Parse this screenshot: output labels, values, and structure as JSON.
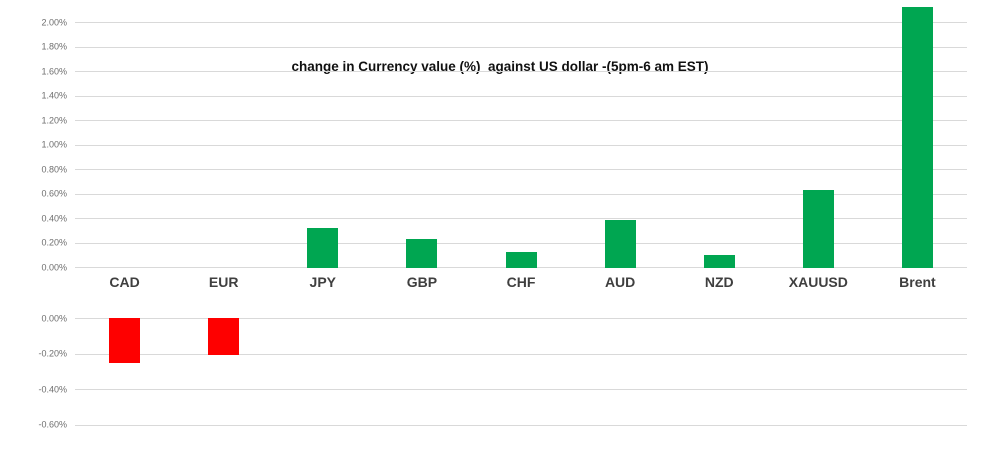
{
  "chart_data": {
    "type": "bar",
    "title": "change in Currency value (%)  against US dollar -(5pm-6 am EST)",
    "categories": [
      "CAD",
      "EUR",
      "JPY",
      "GBP",
      "CHF",
      "AUD",
      "NZD",
      "XAUUSD",
      "Brent"
    ],
    "values": [
      -0.25,
      -0.2,
      0.32,
      0.23,
      0.12,
      0.38,
      0.1,
      0.63,
      2.12
    ],
    "value_unit": "%",
    "legend": "none",
    "grid": true,
    "upper_axis": {
      "min": 0.0,
      "max": 2.0,
      "step": 0.2,
      "ticks": [
        {
          "label": "2.00%",
          "value": 2.0
        },
        {
          "label": "1.80%",
          "value": 1.8
        },
        {
          "label": "1.60%",
          "value": 1.6
        },
        {
          "label": "1.40%",
          "value": 1.4
        },
        {
          "label": "1.20%",
          "value": 1.2
        },
        {
          "label": "1.00%",
          "value": 1.0
        },
        {
          "label": "0.80%",
          "value": 0.8
        },
        {
          "label": "0.60%",
          "value": 0.6
        },
        {
          "label": "0.40%",
          "value": 0.4
        },
        {
          "label": "0.20%",
          "value": 0.2
        },
        {
          "label": "0.00%",
          "value": 0.0
        }
      ]
    },
    "lower_axis": {
      "min": -0.6,
      "max": 0.0,
      "step": 0.2,
      "ticks": [
        {
          "label": "0.00%",
          "value": 0.0
        },
        {
          "label": "-0.20%",
          "value": -0.2
        },
        {
          "label": "-0.40%",
          "value": -0.4
        },
        {
          "label": "-0.60%",
          "value": -0.6
        }
      ]
    },
    "colors": {
      "positive_bar": "#00a651",
      "negative_bar": "#fe0000",
      "gridline": "#d9d9d9",
      "tick_label": "#6e6e6e",
      "category_label": "#3f3f3f",
      "title": "#111111",
      "background": "#ffffff"
    }
  }
}
